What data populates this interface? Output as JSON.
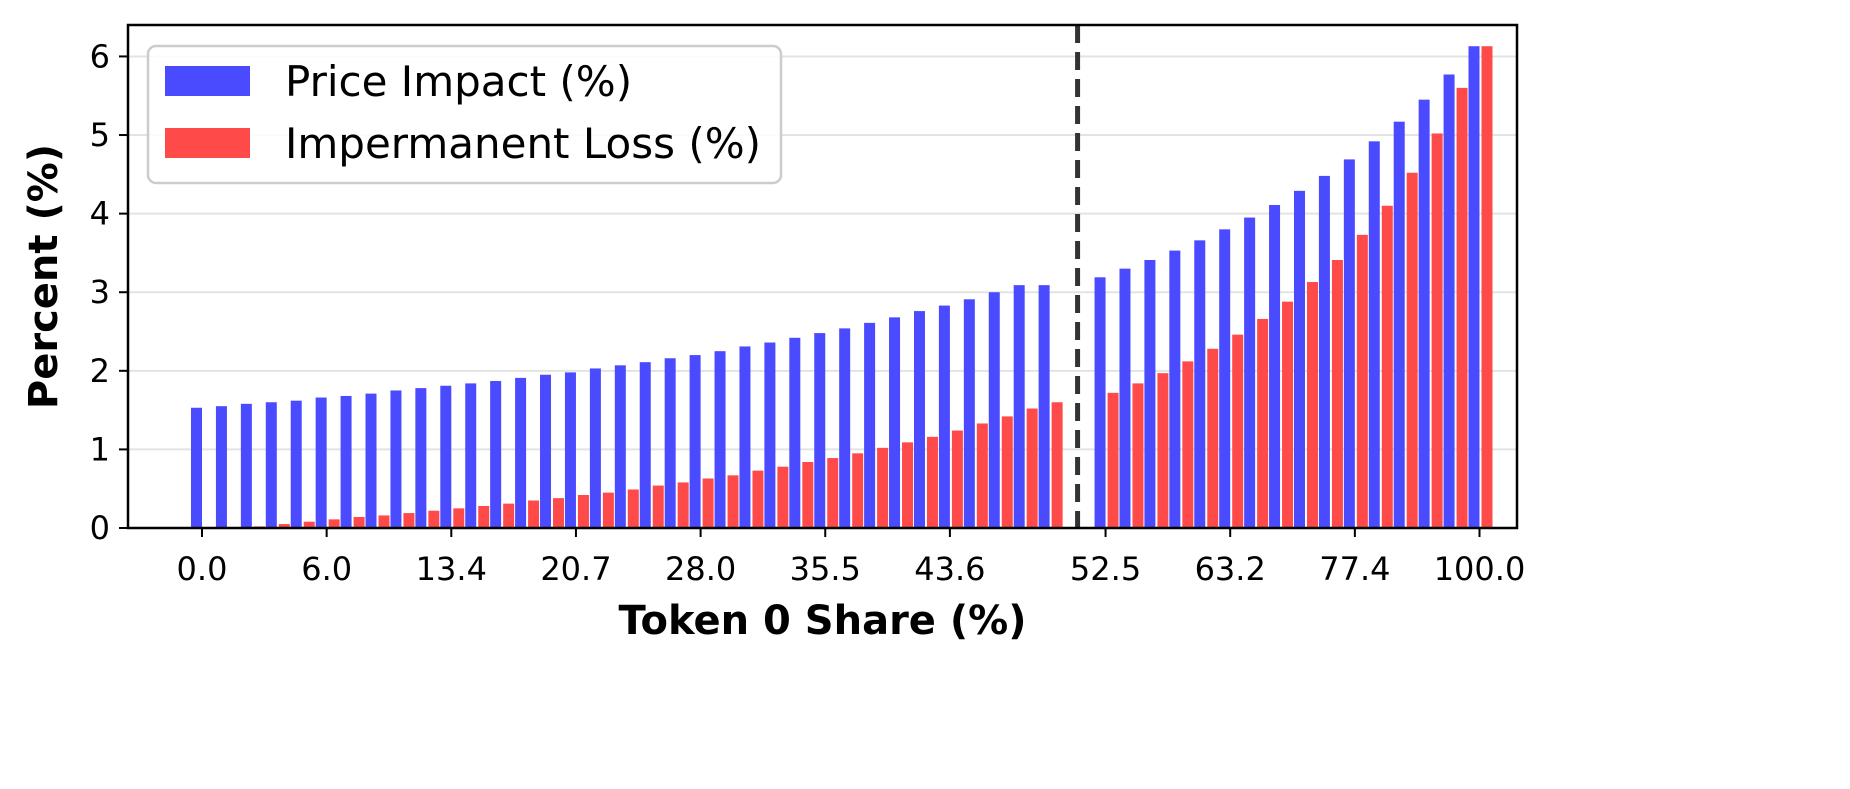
{
  "chart_data": {
    "type": "bar",
    "xlabel": "Token 0 Share (%)",
    "ylabel": "Percent (%)",
    "ylim": [
      0,
      6.4
    ],
    "yticks": [
      0,
      1,
      2,
      3,
      4,
      5,
      6
    ],
    "xtick_labels": [
      "0.0",
      "6.0",
      "13.4",
      "20.7",
      "28.0",
      "35.5",
      "43.6",
      "52.5",
      "63.2",
      "77.4",
      "100.0"
    ],
    "xtick_every": 5,
    "grid": "y",
    "legend": "top-left",
    "vline_after_index": 34,
    "colors": {
      "price_impact": "#4a4aff",
      "impermanent_loss": "#ff4a4a"
    },
    "series": [
      {
        "name": "Price Impact (%)",
        "values": [
          1.53,
          1.55,
          1.58,
          1.6,
          1.62,
          1.66,
          1.68,
          1.71,
          1.75,
          1.78,
          1.81,
          1.84,
          1.87,
          1.91,
          1.95,
          1.98,
          2.03,
          2.07,
          2.11,
          2.16,
          2.2,
          2.25,
          2.31,
          2.36,
          2.42,
          2.48,
          2.54,
          2.61,
          2.68,
          2.76,
          2.83,
          2.91,
          3.0,
          3.09,
          3.09,
          3.19,
          3.3,
          3.41,
          3.53,
          3.66,
          3.8,
          3.95,
          4.11,
          4.29,
          4.48,
          4.69,
          4.92,
          5.17,
          5.45,
          5.77,
          6.13
        ]
      },
      {
        "name": "Impermanent Loss (%)",
        "values": [
          0.0,
          0.0,
          0.02,
          0.05,
          0.08,
          0.11,
          0.14,
          0.16,
          0.19,
          0.22,
          0.25,
          0.28,
          0.31,
          0.35,
          0.38,
          0.42,
          0.45,
          0.49,
          0.54,
          0.58,
          0.63,
          0.67,
          0.73,
          0.78,
          0.84,
          0.89,
          0.95,
          1.02,
          1.09,
          1.16,
          1.24,
          1.33,
          1.42,
          1.52,
          1.6,
          1.72,
          1.84,
          1.97,
          2.12,
          2.28,
          2.46,
          2.66,
          2.88,
          3.13,
          3.41,
          3.73,
          4.1,
          4.52,
          5.02,
          5.6,
          6.13
        ]
      }
    ]
  }
}
